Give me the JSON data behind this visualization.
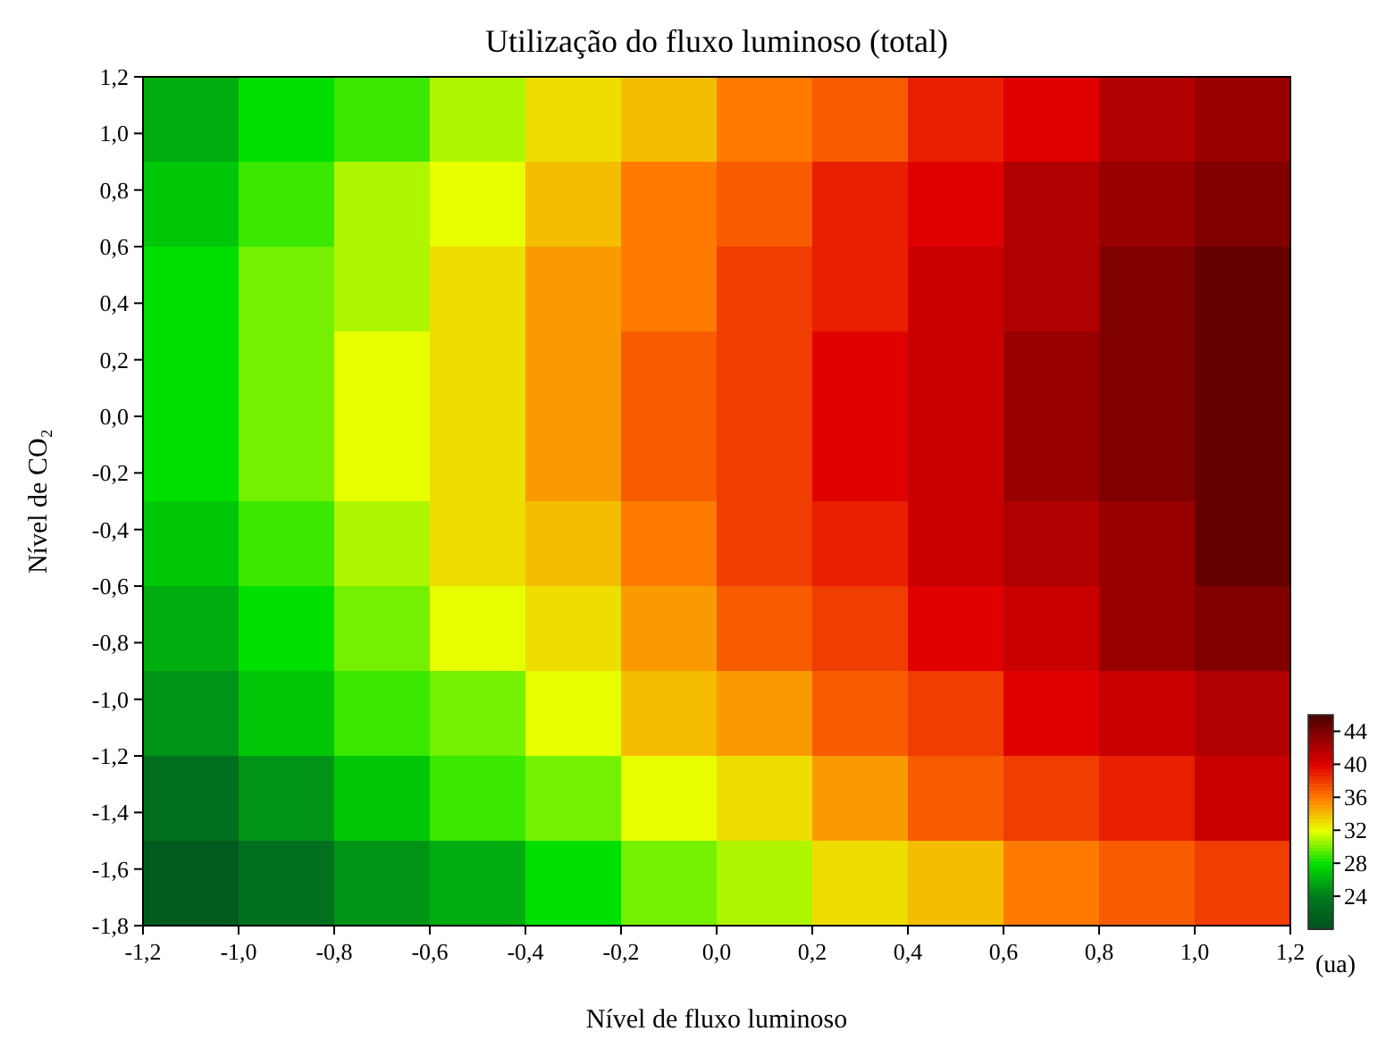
{
  "chart_data": {
    "type": "heatmap",
    "title": "Utilização do fluxo luminoso (total)",
    "xlabel": "Nível de fluxo luminoso",
    "ylabel": "Nível de CO₂",
    "clabel": "(ua)",
    "x": [
      -1.1,
      -0.9,
      -0.7,
      -0.5,
      -0.3,
      -0.1,
      0.1,
      0.3,
      0.5,
      0.7,
      0.9,
      1.1
    ],
    "y": [
      1.05,
      0.75,
      0.45,
      0.15,
      -0.15,
      -0.45,
      -0.75,
      -1.05,
      -1.35,
      -1.65
    ],
    "cells": [
      [
        26,
        28,
        29,
        31,
        33,
        34,
        36,
        37,
        39,
        40,
        42,
        43
      ],
      [
        27,
        29,
        31,
        32,
        34,
        36,
        37,
        39,
        40,
        42,
        43,
        44
      ],
      [
        28,
        30,
        31,
        33,
        35,
        36,
        38,
        39,
        41,
        42,
        44,
        45
      ],
      [
        28,
        30,
        32,
        33,
        35,
        37,
        38,
        40,
        41,
        43,
        44,
        45
      ],
      [
        28,
        30,
        32,
        33,
        35,
        37,
        38,
        40,
        41,
        43,
        44,
        45
      ],
      [
        27,
        29,
        31,
        33,
        34,
        36,
        38,
        39,
        41,
        42,
        43,
        45
      ],
      [
        26,
        28,
        30,
        32,
        33,
        35,
        37,
        38,
        40,
        41,
        43,
        44
      ],
      [
        25,
        27,
        29,
        30,
        32,
        34,
        35,
        37,
        38,
        40,
        41,
        42
      ],
      [
        23,
        25,
        27,
        29,
        30,
        32,
        33,
        35,
        37,
        38,
        39,
        41
      ],
      [
        21,
        23,
        25,
        26,
        28,
        30,
        31,
        33,
        34,
        36,
        37,
        38
      ]
    ],
    "xlim": [
      -1.2,
      1.2
    ],
    "ylim": [
      -1.8,
      1.2
    ],
    "xticks": [
      {
        "value": -1.2,
        "label": "-1,2"
      },
      {
        "value": -1.0,
        "label": "-1,0"
      },
      {
        "value": -0.8,
        "label": "-0,8"
      },
      {
        "value": -0.6,
        "label": "-0,6"
      },
      {
        "value": -0.4,
        "label": "-0,4"
      },
      {
        "value": -0.2,
        "label": "-0,2"
      },
      {
        "value": 0,
        "label": "0,0"
      },
      {
        "value": 0.2,
        "label": "0,2"
      },
      {
        "value": 0.4,
        "label": "0,4"
      },
      {
        "value": 0.6,
        "label": "0,6"
      },
      {
        "value": 0.8,
        "label": "0,8"
      },
      {
        "value": 1.0,
        "label": "1,0"
      },
      {
        "value": 1.2,
        "label": "1,2"
      }
    ],
    "yticks": [
      {
        "value": 1.2,
        "label": "1,2"
      },
      {
        "value": 1.0,
        "label": "1,0"
      },
      {
        "value": 0.8,
        "label": "0,8"
      },
      {
        "value": 0.6,
        "label": "0,6"
      },
      {
        "value": 0.4,
        "label": "0,4"
      },
      {
        "value": 0.2,
        "label": "0,2"
      },
      {
        "value": 0,
        "label": "0,0"
      },
      {
        "value": -0.2,
        "label": "-0,2"
      },
      {
        "value": -0.4,
        "label": "-0,4"
      },
      {
        "value": -0.6,
        "label": "-0,6"
      },
      {
        "value": -0.8,
        "label": "-0,8"
      },
      {
        "value": -1.0,
        "label": "-1,0"
      },
      {
        "value": -1.2,
        "label": "-1,2"
      },
      {
        "value": -1.4,
        "label": "-1,4"
      },
      {
        "value": -1.6,
        "label": "-1,6"
      },
      {
        "value": -1.8,
        "label": "-1,8"
      }
    ],
    "clim": [
      20,
      46
    ],
    "cticks": [
      24,
      28,
      32,
      36,
      40,
      44
    ],
    "colors": [
      "#00501e",
      "#007a1e",
      "#00e000",
      "#e8ff00",
      "#ff7a00",
      "#e00000",
      "#800000",
      "#4a0000"
    ]
  }
}
